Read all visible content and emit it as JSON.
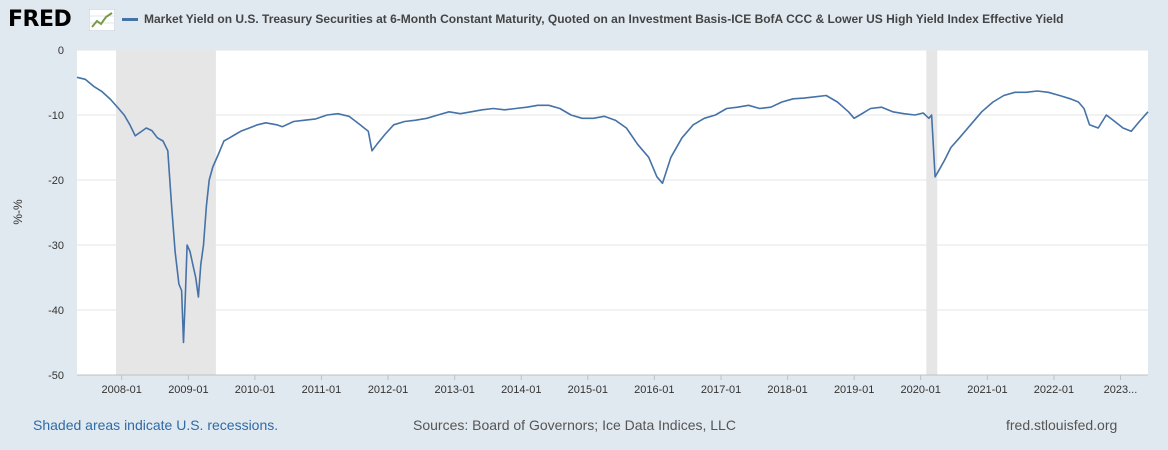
{
  "header": {
    "logo_text": "FRED",
    "logo_icon": "trend-line-icon"
  },
  "chart_data": {
    "type": "line",
    "title": "",
    "xlabel": "",
    "ylabel": "%-%",
    "ylim": [
      -50,
      0
    ],
    "yticks": [
      0,
      -10,
      -20,
      -30,
      -40,
      -50
    ],
    "ytick_labels": [
      "0",
      "-10",
      "-20",
      "-30",
      "-40",
      "-50"
    ],
    "xlim": [
      "2007-05-01",
      "2023-06-01"
    ],
    "xticks": [
      "2008-01-01",
      "2009-01-01",
      "2010-01-01",
      "2011-01-01",
      "2012-01-01",
      "2013-01-01",
      "2014-01-01",
      "2015-01-01",
      "2016-01-01",
      "2017-01-01",
      "2018-01-01",
      "2019-01-01",
      "2020-01-01",
      "2021-01-01",
      "2022-01-01",
      "2023-01-01"
    ],
    "xtick_labels": [
      "2008-01",
      "2009-01",
      "2010-01",
      "2011-01",
      "2012-01",
      "2013-01",
      "2014-01",
      "2015-01",
      "2016-01",
      "2017-01",
      "2018-01",
      "2019-01",
      "2020-01",
      "2021-01",
      "2022-01",
      "2023..."
    ],
    "grid": true,
    "legend": "top-left",
    "recessions": [
      {
        "start": "2007-12-01",
        "end": "2009-06-01"
      },
      {
        "start": "2020-02-01",
        "end": "2020-04-01"
      }
    ],
    "series": [
      {
        "name": "Market Yield on U.S. Treasury Securities at 6-Month Constant Maturity, Quoted on an Investment Basis-ICE BofA CCC & Lower US High Yield Index Effective Yield",
        "color": "#4572a7",
        "x": [
          "2007-05-01",
          "2007-06-15",
          "2007-08-01",
          "2007-09-15",
          "2007-11-01",
          "2007-12-15",
          "2008-01-15",
          "2008-02-15",
          "2008-03-15",
          "2008-04-15",
          "2008-05-15",
          "2008-06-15",
          "2008-07-15",
          "2008-08-15",
          "2008-09-10",
          "2008-10-01",
          "2008-10-20",
          "2008-11-10",
          "2008-11-25",
          "2008-12-05",
          "2008-12-15",
          "2008-12-25",
          "2009-01-10",
          "2009-01-25",
          "2009-02-10",
          "2009-02-25",
          "2009-03-10",
          "2009-03-25",
          "2009-04-10",
          "2009-04-25",
          "2009-05-15",
          "2009-06-15",
          "2009-07-15",
          "2009-08-15",
          "2009-09-15",
          "2009-10-15",
          "2009-12-01",
          "2010-01-15",
          "2010-03-01",
          "2010-05-01",
          "2010-06-01",
          "2010-08-01",
          "2010-10-01",
          "2010-12-01",
          "2011-02-01",
          "2011-04-01",
          "2011-06-01",
          "2011-08-01",
          "2011-09-15",
          "2011-10-05",
          "2011-11-01",
          "2011-12-15",
          "2012-02-01",
          "2012-04-01",
          "2012-06-01",
          "2012-08-01",
          "2012-10-01",
          "2012-12-01",
          "2013-02-01",
          "2013-04-01",
          "2013-06-01",
          "2013-08-01",
          "2013-10-01",
          "2013-12-01",
          "2014-02-01",
          "2014-04-01",
          "2014-06-01",
          "2014-08-01",
          "2014-10-01",
          "2014-12-01",
          "2015-02-01",
          "2015-04-01",
          "2015-06-01",
          "2015-08-01",
          "2015-10-01",
          "2015-12-01",
          "2016-01-15",
          "2016-02-15",
          "2016-04-01",
          "2016-06-01",
          "2016-08-01",
          "2016-10-01",
          "2016-12-01",
          "2017-02-01",
          "2017-04-01",
          "2017-06-01",
          "2017-08-01",
          "2017-10-01",
          "2017-12-01",
          "2018-02-01",
          "2018-04-01",
          "2018-06-01",
          "2018-08-01",
          "2018-10-01",
          "2018-12-01",
          "2019-01-01",
          "2019-02-01",
          "2019-04-01",
          "2019-06-01",
          "2019-08-01",
          "2019-10-01",
          "2019-12-01",
          "2020-01-15",
          "2020-02-15",
          "2020-03-01",
          "2020-03-20",
          "2020-04-10",
          "2020-05-10",
          "2020-06-15",
          "2020-08-01",
          "2020-10-01",
          "2020-12-01",
          "2021-02-01",
          "2021-04-01",
          "2021-06-01",
          "2021-08-01",
          "2021-10-01",
          "2021-12-01",
          "2022-02-01",
          "2022-04-01",
          "2022-05-15",
          "2022-06-15",
          "2022-07-15",
          "2022-09-01",
          "2022-10-15",
          "2022-12-01",
          "2023-01-15",
          "2023-03-01",
          "2023-04-15",
          "2023-06-01"
        ],
        "values": [
          -4.2,
          -4.5,
          -5.6,
          -6.4,
          -7.6,
          -9.0,
          -10.0,
          -11.5,
          -13.2,
          -12.6,
          -12.0,
          -12.4,
          -13.5,
          -14.0,
          -15.5,
          -24,
          -31,
          -36,
          -37,
          -45,
          -38,
          -30,
          -31,
          -33,
          -35,
          -38,
          -33,
          -30,
          -24,
          -20,
          -18,
          -16,
          -14,
          -13.5,
          -13.0,
          -12.5,
          -12.0,
          -11.5,
          -11.2,
          -11.5,
          -11.8,
          -11.0,
          -10.8,
          -10.6,
          -10.0,
          -9.8,
          -10.2,
          -11.5,
          -12.5,
          -15.5,
          -14.5,
          -13.0,
          -11.5,
          -11.0,
          -10.8,
          -10.5,
          -10.0,
          -9.5,
          -9.8,
          -9.5,
          -9.2,
          -9.0,
          -9.2,
          -9.0,
          -8.8,
          -8.5,
          -8.5,
          -9.0,
          -10.0,
          -10.5,
          -10.5,
          -10.2,
          -10.8,
          -12.0,
          -14.5,
          -16.5,
          -19.5,
          -20.5,
          -16.5,
          -13.5,
          -11.5,
          -10.5,
          -10.0,
          -9.0,
          -8.8,
          -8.5,
          -9.0,
          -8.8,
          -8.0,
          -7.5,
          -7.4,
          -7.2,
          -7.0,
          -8.0,
          -9.5,
          -10.5,
          -10.0,
          -9.0,
          -8.8,
          -9.5,
          -9.8,
          -10.0,
          -9.7,
          -10.5,
          -10.0,
          -19.5,
          -18.5,
          -17.0,
          -15.0,
          -13.5,
          -11.5,
          -9.5,
          -8.0,
          -7.0,
          -6.5,
          -6.5,
          -6.3,
          -6.5,
          -7.0,
          -7.5,
          -8.0,
          -9.0,
          -11.5,
          -12.0,
          -10.0,
          -11.0,
          -12.0,
          -12.5,
          -11.0,
          -9.5
        ]
      }
    ]
  },
  "footer": {
    "recession_note": "Shaded areas indicate U.S. recessions.",
    "sources": "Sources: Board of Governors; Ice Data Indices, LLC",
    "site": "fred.stlouisfed.org"
  }
}
